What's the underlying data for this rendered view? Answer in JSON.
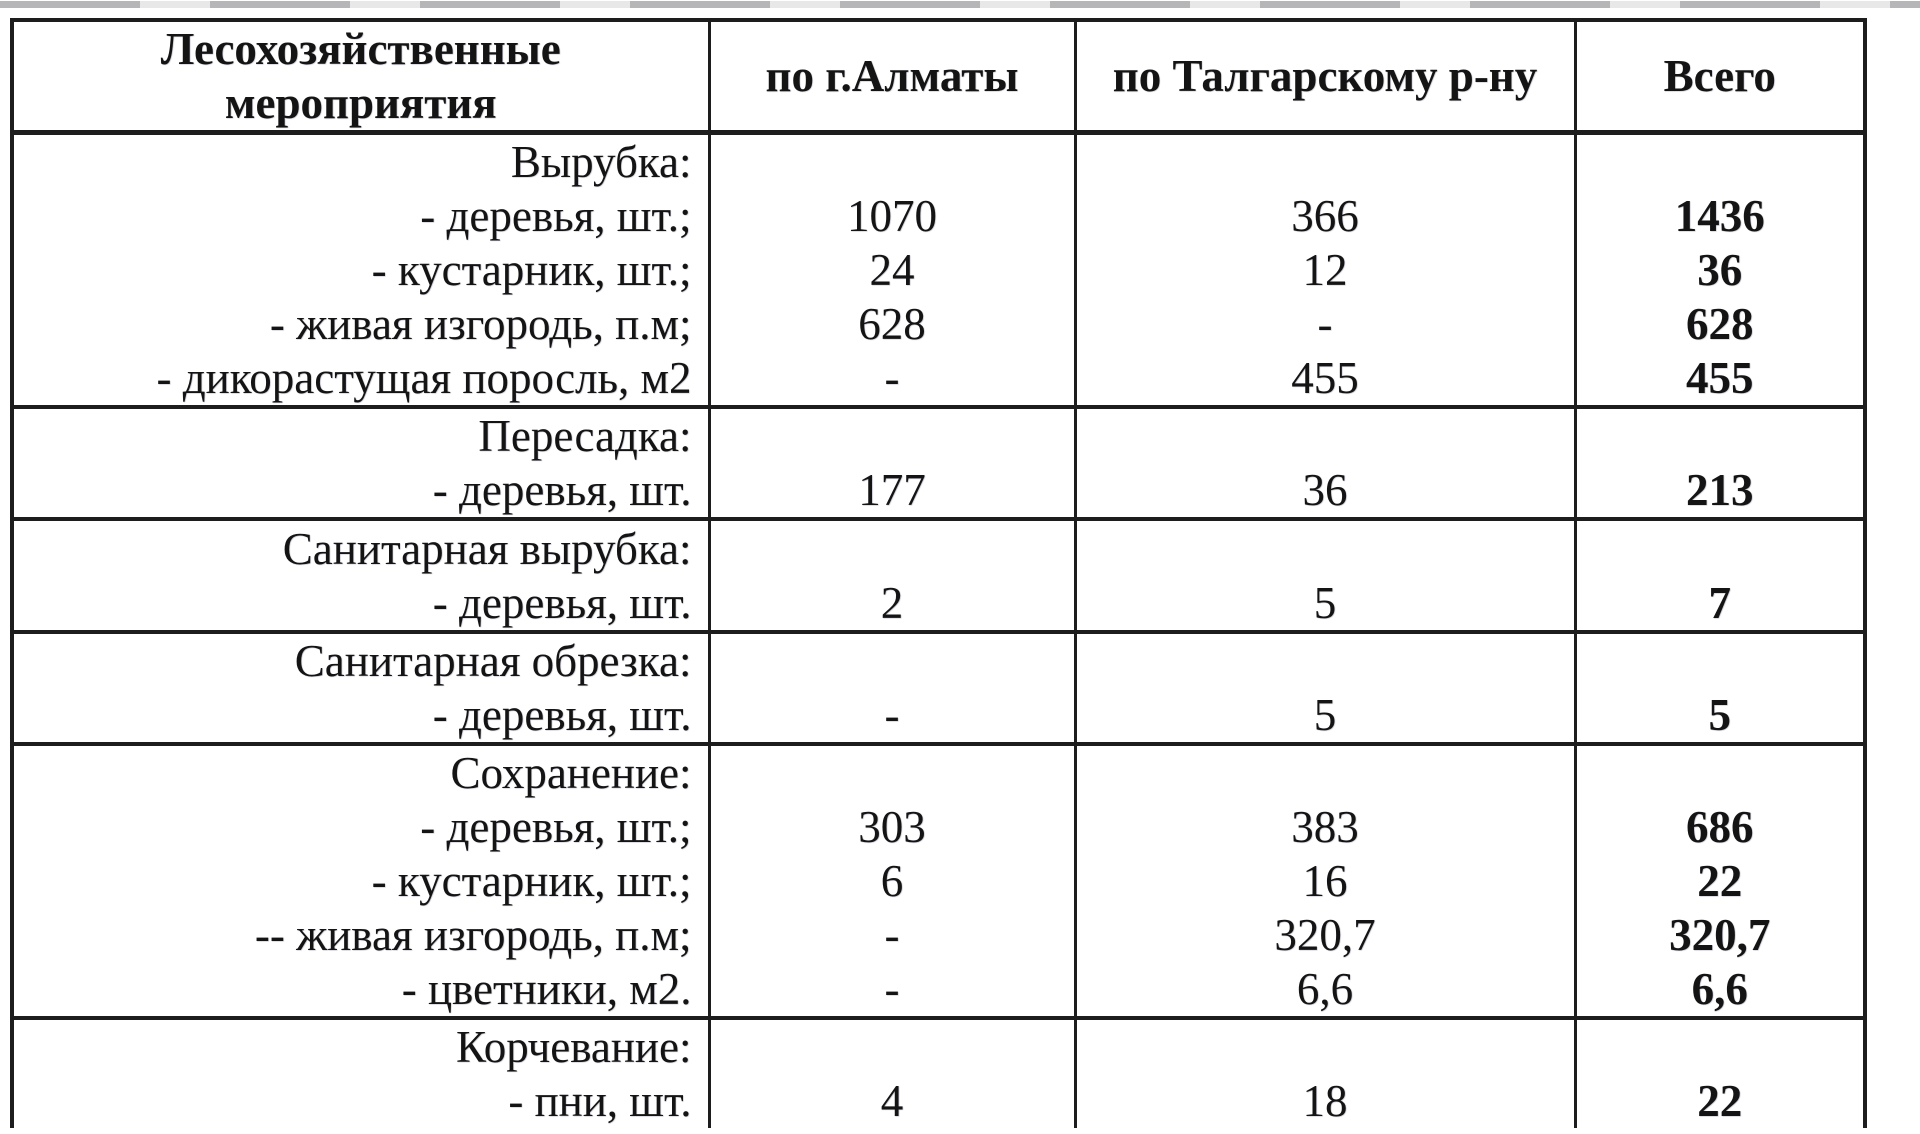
{
  "colors": {
    "background": "#ffffff",
    "text": "#141414",
    "border": "#1d1d1d"
  },
  "table": {
    "header": {
      "activities": "Лесохозяйственные мероприятия",
      "almaty": "по г.Алматы",
      "talgar": "по Талгарскому р-ну",
      "total": "Всего"
    },
    "sections": [
      {
        "name": "Вырубка",
        "rows": [
          {
            "label": "Вырубка:",
            "almaty": "",
            "talgar": "",
            "total": ""
          },
          {
            "label": "- деревья, шт.;",
            "almaty": "1070",
            "talgar": "366",
            "total": "1436"
          },
          {
            "label": "- кустарник, шт.;",
            "almaty": "24",
            "talgar": "12",
            "total": "36"
          },
          {
            "label": "- живая изгородь, п.м;",
            "almaty": "628",
            "talgar": "-",
            "total": "628"
          },
          {
            "label": "- дикорастущая поросль, м2",
            "almaty": "-",
            "talgar": "455",
            "total": "455"
          }
        ]
      },
      {
        "name": "Пересадка",
        "rows": [
          {
            "label": "Пересадка:",
            "almaty": "",
            "talgar": "",
            "total": ""
          },
          {
            "label": "- деревья, шт.",
            "almaty": "177",
            "talgar": "36",
            "total": "213"
          }
        ]
      },
      {
        "name": "Санитарная вырубка",
        "rows": [
          {
            "label": "Санитарная вырубка:",
            "almaty": "",
            "talgar": "",
            "total": ""
          },
          {
            "label": "- деревья, шт.",
            "almaty": "2",
            "talgar": "5",
            "total": "7"
          }
        ]
      },
      {
        "name": "Санитарная обрезка",
        "rows": [
          {
            "label": "Санитарная обрезка:",
            "almaty": "",
            "talgar": "",
            "total": ""
          },
          {
            "label": "- деревья, шт.",
            "almaty": "-",
            "talgar": "5",
            "total": "5"
          }
        ]
      },
      {
        "name": "Сохранение",
        "rows": [
          {
            "label": "Сохранение:",
            "almaty": "",
            "talgar": "",
            "total": ""
          },
          {
            "label": "- деревья, шт.;",
            "almaty": "303",
            "talgar": "383",
            "total": "686"
          },
          {
            "label": "- кустарник, шт.;",
            "almaty": "6",
            "talgar": "16",
            "total": "22"
          },
          {
            "label": "-- живая изгородь, п.м;",
            "almaty": "-",
            "talgar": "320,7",
            "total": "320,7"
          },
          {
            "label": "- цветники, м2.",
            "almaty": "-",
            "talgar": "6,6",
            "total": "6,6"
          }
        ]
      },
      {
        "name": "Корчевание",
        "rows": [
          {
            "label": "Корчевание:",
            "almaty": "",
            "talgar": "",
            "total": ""
          },
          {
            "label": "- пни, шт.",
            "almaty": "4",
            "talgar": "18",
            "total": "22"
          }
        ]
      }
    ]
  }
}
